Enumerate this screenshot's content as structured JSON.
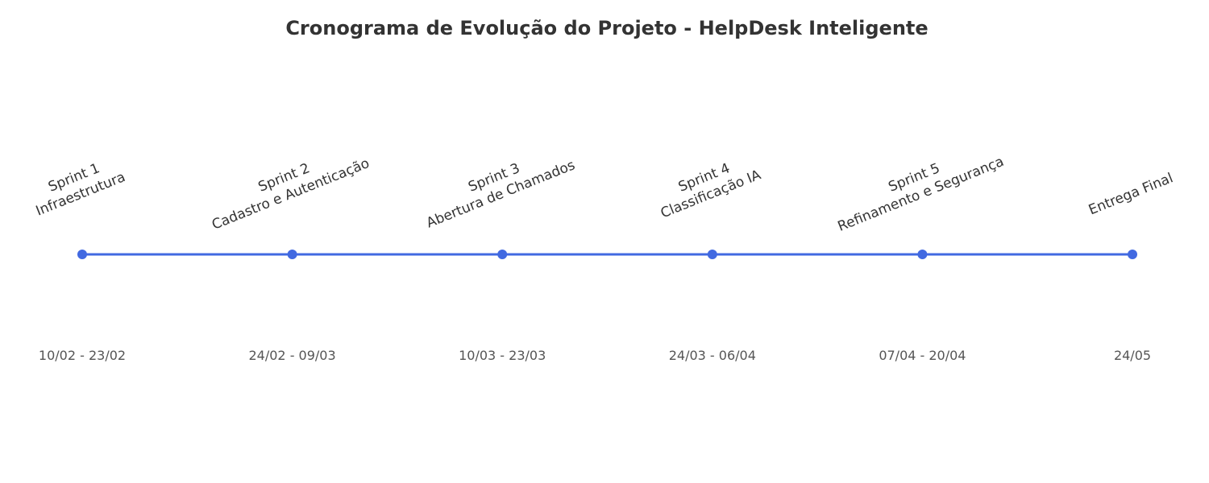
{
  "chart_data": {
    "type": "line",
    "title": "Cronograma de Evolução do Projeto - HelpDesk Inteligente",
    "xlabel": "",
    "ylabel": "",
    "grid": false,
    "axes_visible": false,
    "line_color": "#4169e1",
    "marker_color": "#4169e1",
    "milestones": [
      {
        "label_lines": [
          "Sprint 1",
          "Infraestrutura"
        ],
        "date": "10/02 - 23/02"
      },
      {
        "label_lines": [
          "Sprint 2",
          "Cadastro e Autenticação"
        ],
        "date": "24/02 - 09/03"
      },
      {
        "label_lines": [
          "Sprint 3",
          "Abertura de Chamados"
        ],
        "date": "10/03 - 23/03"
      },
      {
        "label_lines": [
          "Sprint 4",
          "Classificação IA"
        ],
        "date": "24/03 - 06/04"
      },
      {
        "label_lines": [
          "Sprint 5",
          "Refinamento e Segurança"
        ],
        "date": "07/04 - 20/04"
      },
      {
        "label_lines": [
          "Entrega Final"
        ],
        "date": "24/05"
      }
    ]
  }
}
